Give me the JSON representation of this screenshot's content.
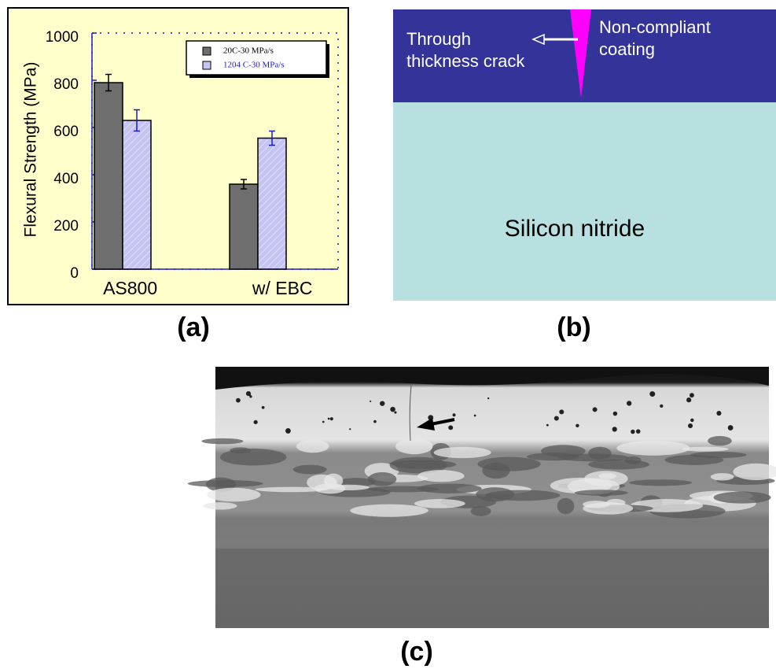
{
  "chart_data": {
    "type": "bar",
    "y_label": "Flexural Strength (MPa)",
    "categories": [
      "AS800",
      "w/ EBC"
    ],
    "series": [
      {
        "name": "20C-30 MPa/s",
        "color": "#6e6e6e",
        "values": [
          790,
          360
        ],
        "errors": [
          35,
          20
        ]
      },
      {
        "name": "1204 C-30 MPa/s",
        "color": "#c4c4f2",
        "values": [
          630,
          555
        ],
        "errors": [
          45,
          30
        ]
      }
    ],
    "ylim": [
      0,
      1000
    ],
    "yticks": [
      0,
      200,
      400,
      600,
      800,
      1000
    ]
  },
  "diagram": {
    "layer_top_left": "Through\nthickness crack",
    "layer_top_right": "Non-compliant\ncoating",
    "substrate": "Silicon nitride"
  },
  "panel_labels": [
    "(a)",
    "(b)",
    "(c)"
  ]
}
